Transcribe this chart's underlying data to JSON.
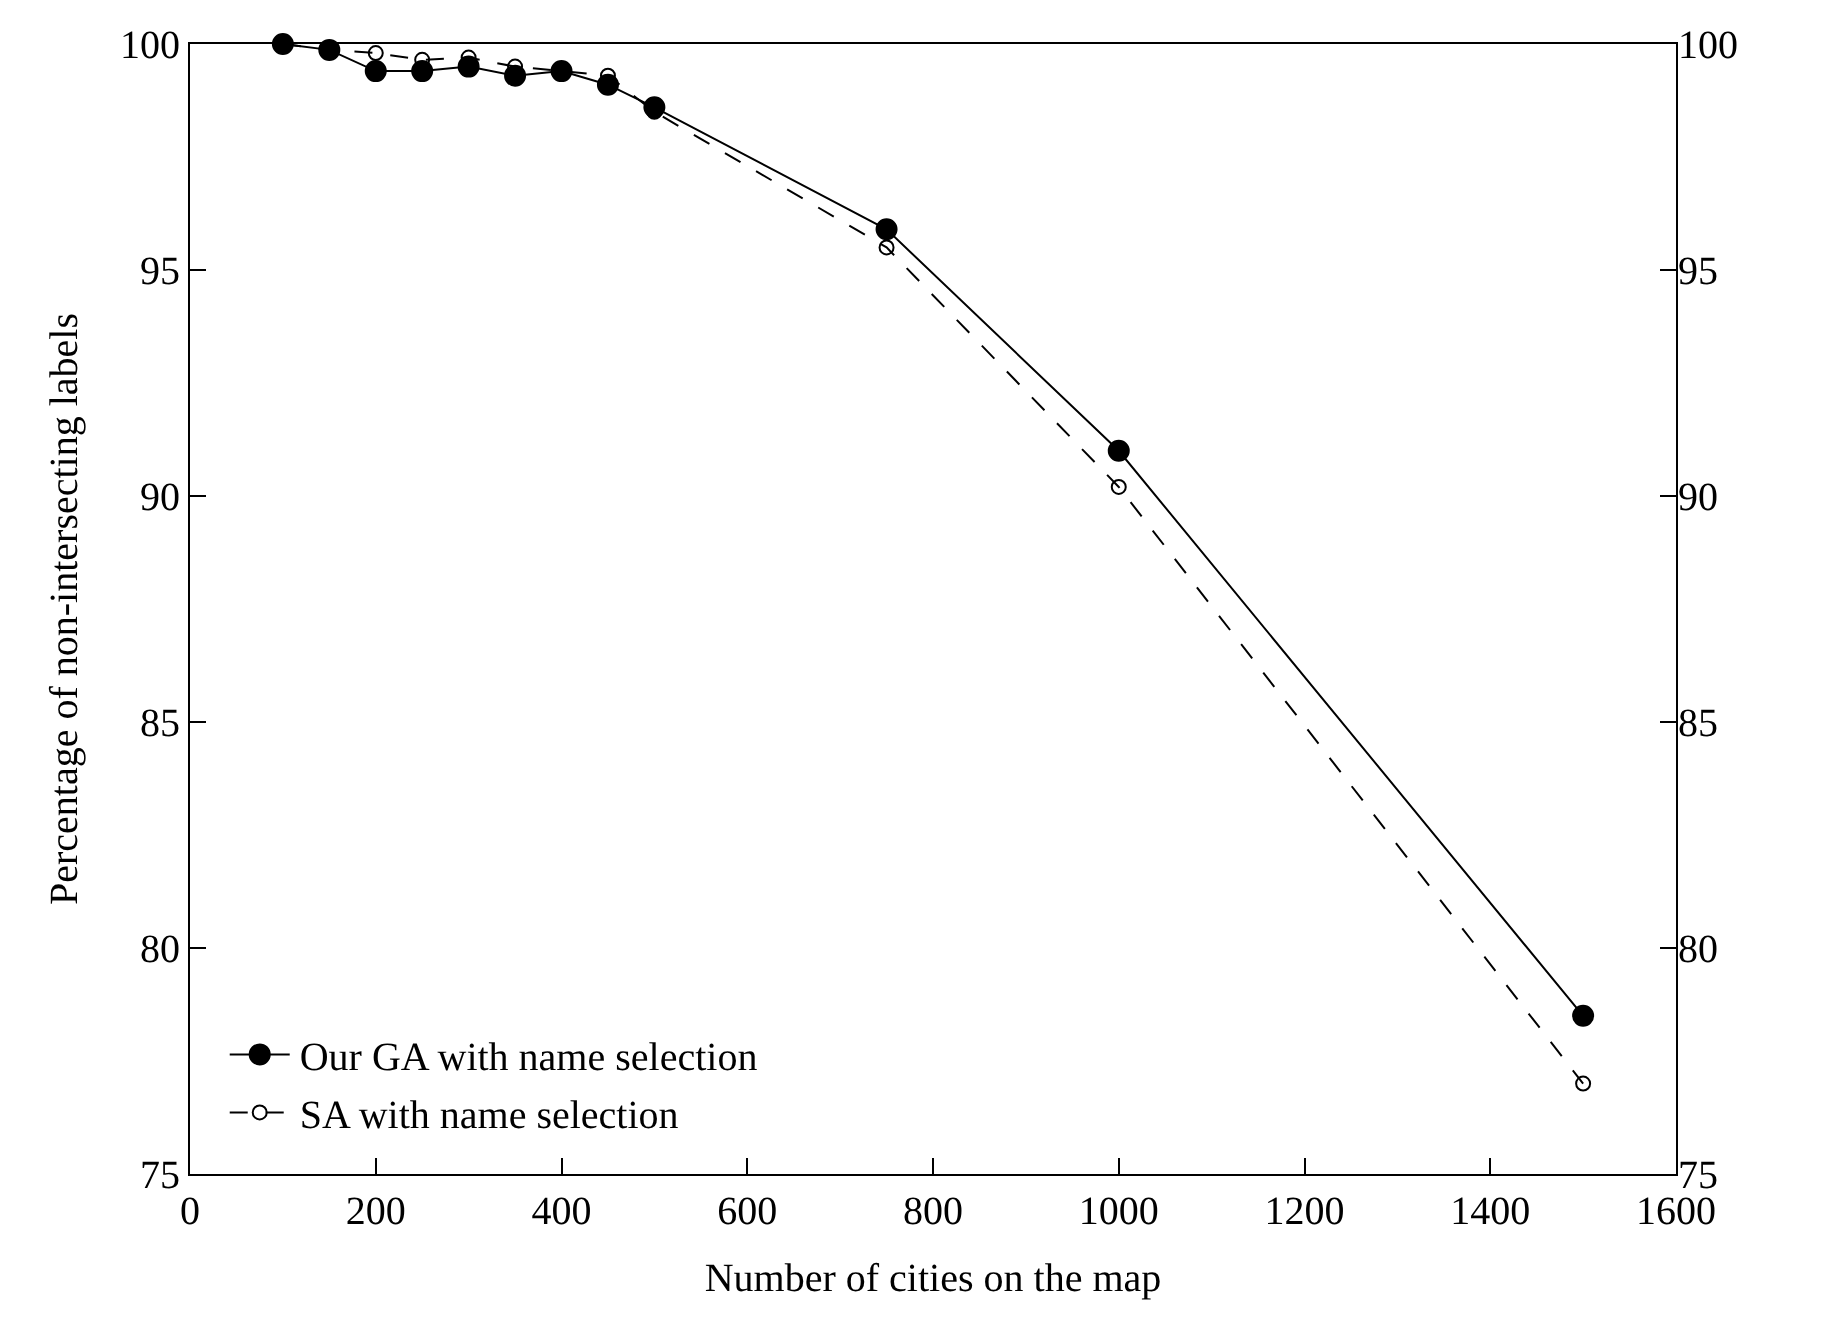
{
  "chart_data": {
    "type": "line",
    "xlabel": "Number of cities on the map",
    "ylabel": "Percentage of non-intersecting labels",
    "x": [
      100,
      150,
      200,
      250,
      300,
      350,
      400,
      450,
      500,
      750,
      1000,
      1500
    ],
    "series": [
      {
        "name": "Our GA with name selection",
        "color": "#000000",
        "line_style": "solid",
        "marker": "circle",
        "values": [
          100,
          99.87,
          99.4,
          99.4,
          99.5,
          99.3,
          99.4,
          99.1,
          98.6,
          95.9,
          91.0,
          78.5
        ]
      },
      {
        "name": "SA with name selection",
        "color": "#000000",
        "line_style": "dashed",
        "marker": "circle",
        "values": [
          100,
          99.87,
          99.8,
          99.65,
          99.7,
          99.5,
          99.4,
          99.3,
          98.5,
          95.5,
          90.2,
          77.0
        ]
      }
    ],
    "xlim": [
      0,
      1600
    ],
    "xticks": [
      0,
      200,
      400,
      600,
      800,
      1000,
      1200,
      1400,
      1600
    ],
    "ylim": [
      75,
      100
    ],
    "yticks": [
      75,
      80,
      85,
      90,
      95,
      100
    ],
    "y2lim": [
      75,
      100
    ],
    "y2ticks": [
      75,
      80,
      85,
      90,
      95,
      100
    ],
    "legend": "bottom left"
  }
}
